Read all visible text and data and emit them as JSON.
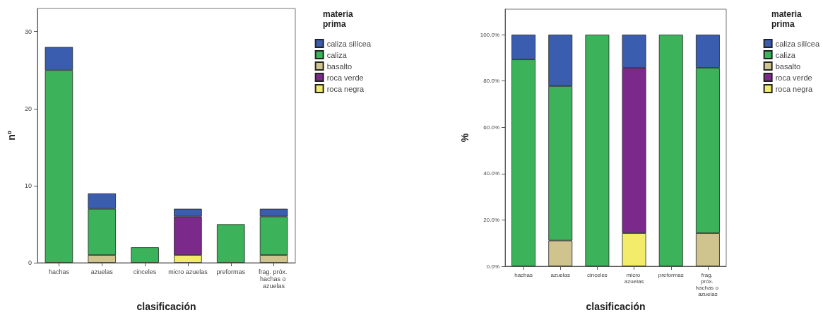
{
  "chart_data": [
    {
      "type": "bar",
      "stacked": true,
      "xlabel": "clasificación",
      "ylabel": "nº",
      "legend_title": "materia prima",
      "legend": "top right",
      "grid": false,
      "categories": [
        "hachas",
        "azuelas",
        "cinceles",
        "micro azuelas",
        "preformas",
        "frag. próx. hachas o azuelas"
      ],
      "ylim": [
        0,
        33
      ],
      "yticks": [
        0,
        10,
        20,
        30
      ],
      "series": [
        {
          "name": "roca negra",
          "color": "#f2ec6a",
          "values": [
            null,
            null,
            null,
            1,
            null,
            null
          ]
        },
        {
          "name": "roca verde",
          "color": "#7b2a8c",
          "values": [
            null,
            null,
            null,
            5,
            null,
            null
          ]
        },
        {
          "name": "basalto",
          "color": "#d0c48e",
          "values": [
            null,
            1,
            null,
            null,
            null,
            1
          ]
        },
        {
          "name": "caliza",
          "color": "#3cb35a",
          "values": [
            25,
            6,
            2,
            null,
            5,
            5
          ]
        },
        {
          "name": "caliza silícea",
          "color": "#3a5db0",
          "values": [
            3,
            2,
            null,
            1,
            null,
            1
          ]
        }
      ]
    },
    {
      "type": "bar",
      "stacked": true,
      "xlabel": "clasificación",
      "ylabel": "%",
      "legend_title": "materia prima",
      "legend": "top right",
      "grid": false,
      "categories": [
        "hachas",
        "azuelas",
        "cinceles",
        "micro azuelas",
        "preformas",
        "frag. próx. hachas o azuelas"
      ],
      "ylim": [
        0,
        111
      ],
      "yticks": [
        {
          "value": 0,
          "label": "0.0%"
        },
        {
          "value": 20,
          "label": "20.0%"
        },
        {
          "value": 40,
          "label": "40.0%"
        },
        {
          "value": 60,
          "label": "60.0%"
        },
        {
          "value": 80,
          "label": "80.0%"
        },
        {
          "value": 100,
          "label": "100.0%"
        }
      ],
      "series": [
        {
          "name": "roca negra",
          "color": "#f2ec6a",
          "values": [
            null,
            null,
            null,
            14.3,
            null,
            null
          ]
        },
        {
          "name": "roca verde",
          "color": "#7b2a8c",
          "values": [
            null,
            null,
            null,
            71.4,
            null,
            null
          ]
        },
        {
          "name": "basalto",
          "color": "#d0c48e",
          "values": [
            null,
            11.1,
            null,
            null,
            null,
            14.3
          ]
        },
        {
          "name": "caliza",
          "color": "#3cb35a",
          "values": [
            89.3,
            66.7,
            100,
            null,
            100,
            71.4
          ]
        },
        {
          "name": "caliza silícea",
          "color": "#3a5db0",
          "values": [
            10.7,
            22.2,
            null,
            14.3,
            null,
            14.3
          ]
        }
      ]
    }
  ]
}
